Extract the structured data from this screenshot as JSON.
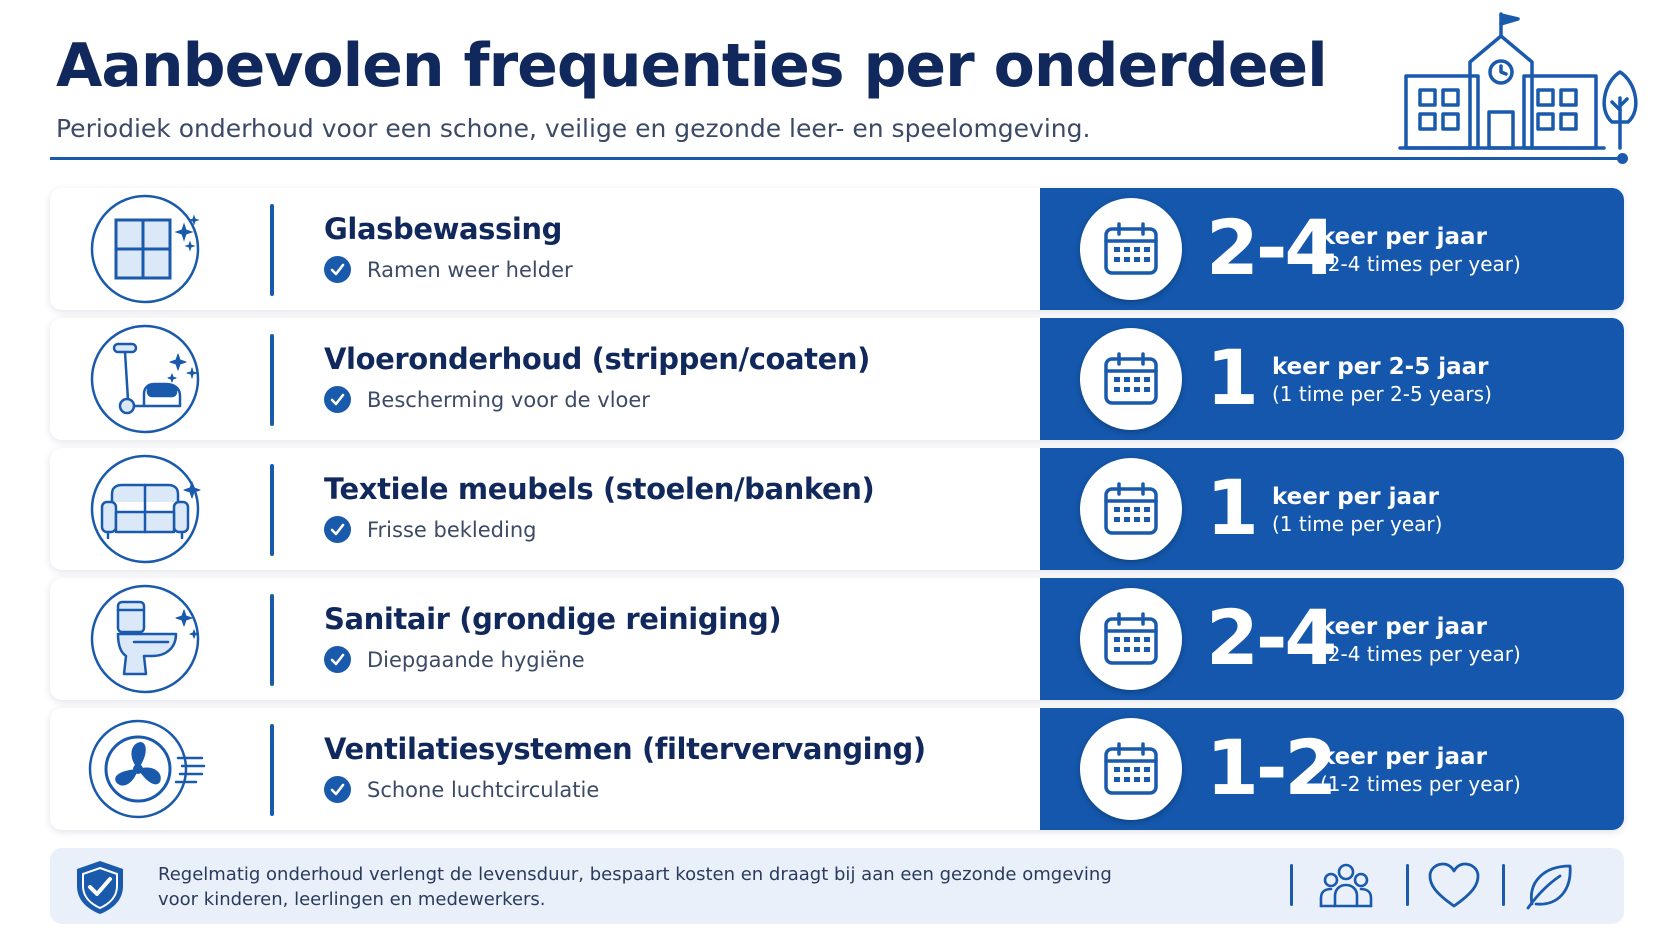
{
  "header": {
    "title": "Aanbevolen frequenties per onderdeel",
    "subtitle": "Periodiek onderhoud voor een schone, veilige en gezonde leer- en speelomgeving.",
    "illustration_icon": "school-building-icon"
  },
  "rows": [
    {
      "title": "Glasbewassing",
      "benefit": "Ramen weer helder",
      "icon": "window-icon",
      "frequency_value": "2-4",
      "frequency_main": "keer per jaar",
      "frequency_sub": "(2-4 times per year)"
    },
    {
      "title": "Vloeronderhoud (strippen/coaten)",
      "benefit": "Bescherming voor de vloer",
      "icon": "floor-machine-icon",
      "frequency_value": "1",
      "frequency_main": "keer per 2-5 jaar",
      "frequency_sub": "(1 time per 2-5 years)"
    },
    {
      "title": "Textiele meubels (stoelen/banken)",
      "benefit": "Frisse bekleding",
      "icon": "sofa-icon",
      "frequency_value": "1",
      "frequency_main": "keer per jaar",
      "frequency_sub": "(1 time per year)"
    },
    {
      "title": "Sanitair (grondige reiniging)",
      "benefit": "Diepgaande hygiëne",
      "icon": "toilet-icon",
      "frequency_value": "2-4",
      "frequency_main": "keer per jaar",
      "frequency_sub": "(2-4 times per year)"
    },
    {
      "title": "Ventilatiesystemen (filtervervanging)",
      "benefit": "Schone luchtcirculatie",
      "icon": "ventilation-fan-icon",
      "frequency_value": "1-2",
      "frequency_main": "keer per jaar",
      "frequency_sub": "(1-2 times per year)"
    }
  ],
  "footer": {
    "line1": "Regelmatig onderhoud verlengt de levensduur, bespaart kosten en draagt bij aan een gezonde omgeving",
    "line2": "voor kinderen, leerlingen en medewerkers.",
    "icons": [
      "shield-check-icon",
      "people-icon",
      "heart-icon",
      "leaf-icon"
    ]
  },
  "colors": {
    "navy": "#10285c",
    "accent_blue": "#1457ac",
    "footer_bg": "#e9f0fa",
    "text_gray": "#3c4a66"
  }
}
